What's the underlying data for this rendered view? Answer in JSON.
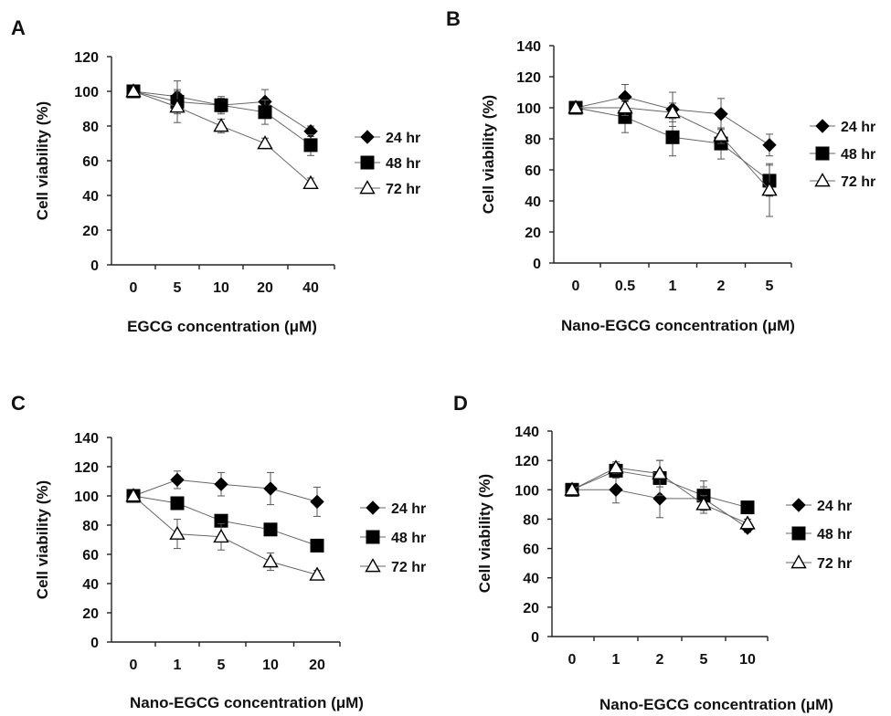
{
  "chart_data": [
    {
      "type": "line",
      "panel": "A",
      "categories": [
        "0",
        "5",
        "10",
        "20",
        "40"
      ],
      "xlabel": "EGCG concentration (μM)",
      "ylabel": "Cell viability (%)",
      "ylim": [
        0,
        120
      ],
      "yticks": [
        0,
        20,
        40,
        60,
        80,
        100,
        120
      ],
      "grid": false,
      "legend_position": "right",
      "series": [
        {
          "name": "24 hr",
          "marker": "diamond",
          "values": [
            100,
            97,
            92,
            94,
            77
          ],
          "errors": [
            0,
            9,
            4,
            7,
            3
          ]
        },
        {
          "name": "48 hr",
          "marker": "square",
          "values": [
            100,
            94,
            92,
            88,
            69
          ],
          "errors": [
            0,
            7,
            5,
            7,
            6
          ]
        },
        {
          "name": "72 hr",
          "marker": "triangle",
          "values": [
            100,
            91,
            80,
            70,
            47
          ],
          "errors": [
            0,
            9,
            4,
            3,
            3
          ]
        }
      ]
    },
    {
      "type": "line",
      "panel": "B",
      "categories": [
        "0",
        "0.5",
        "1",
        "2",
        "5"
      ],
      "xlabel": "Nano-EGCG concentration (μM)",
      "ylabel": "Cell viability (%)",
      "ylim": [
        0,
        140
      ],
      "yticks": [
        0,
        20,
        40,
        60,
        80,
        100,
        120,
        140
      ],
      "grid": false,
      "legend_position": "right",
      "series": [
        {
          "name": "24 hr",
          "marker": "diamond",
          "values": [
            100,
            107,
            99,
            96,
            76
          ],
          "errors": [
            0,
            8,
            11,
            10,
            7
          ]
        },
        {
          "name": "48 hr",
          "marker": "square",
          "values": [
            100,
            94,
            81,
            77,
            53
          ],
          "errors": [
            0,
            10,
            12,
            10,
            10
          ]
        },
        {
          "name": "72 hr",
          "marker": "triangle",
          "values": [
            100,
            100,
            97,
            82,
            47
          ],
          "errors": [
            0,
            5,
            6,
            5,
            17
          ]
        }
      ]
    },
    {
      "type": "line",
      "panel": "C",
      "categories": [
        "0",
        "1",
        "5",
        "10",
        "20"
      ],
      "xlabel": "Nano-EGCG concentration (μM)",
      "ylabel": "Cell viability (%)",
      "ylim": [
        0,
        140
      ],
      "yticks": [
        0,
        20,
        40,
        60,
        80,
        100,
        120,
        140
      ],
      "grid": false,
      "legend_position": "right",
      "series": [
        {
          "name": "24 hr",
          "marker": "diamond",
          "values": [
            100,
            111,
            108,
            105,
            96
          ],
          "errors": [
            0,
            6,
            8,
            11,
            10
          ]
        },
        {
          "name": "48 hr",
          "marker": "square",
          "values": [
            100,
            95,
            83,
            77,
            66
          ],
          "errors": [
            0,
            4,
            4,
            4,
            3
          ]
        },
        {
          "name": "72 hr",
          "marker": "triangle",
          "values": [
            100,
            74,
            72,
            55,
            46
          ],
          "errors": [
            0,
            10,
            9,
            6,
            3
          ]
        }
      ]
    },
    {
      "type": "line",
      "panel": "D",
      "categories": [
        "0",
        "1",
        "2",
        "5",
        "10"
      ],
      "xlabel": "Nano-EGCG concentration (μM)",
      "ylabel": "Cell viability (%)",
      "ylim": [
        0,
        140
      ],
      "yticks": [
        0,
        20,
        40,
        60,
        80,
        100,
        120,
        140
      ],
      "grid": false,
      "legend_position": "right",
      "series": [
        {
          "name": "24 hr",
          "marker": "diamond",
          "values": [
            100,
            100,
            94,
            94,
            74
          ],
          "errors": [
            0,
            9,
            13,
            8,
            3
          ]
        },
        {
          "name": "48 hr",
          "marker": "square",
          "values": [
            100,
            113,
            108,
            96,
            88
          ],
          "errors": [
            0,
            5,
            12,
            10,
            3
          ]
        },
        {
          "name": "72 hr",
          "marker": "triangle",
          "values": [
            100,
            115,
            111,
            90,
            77
          ],
          "errors": [
            0,
            4,
            9,
            6,
            3
          ]
        }
      ]
    }
  ]
}
